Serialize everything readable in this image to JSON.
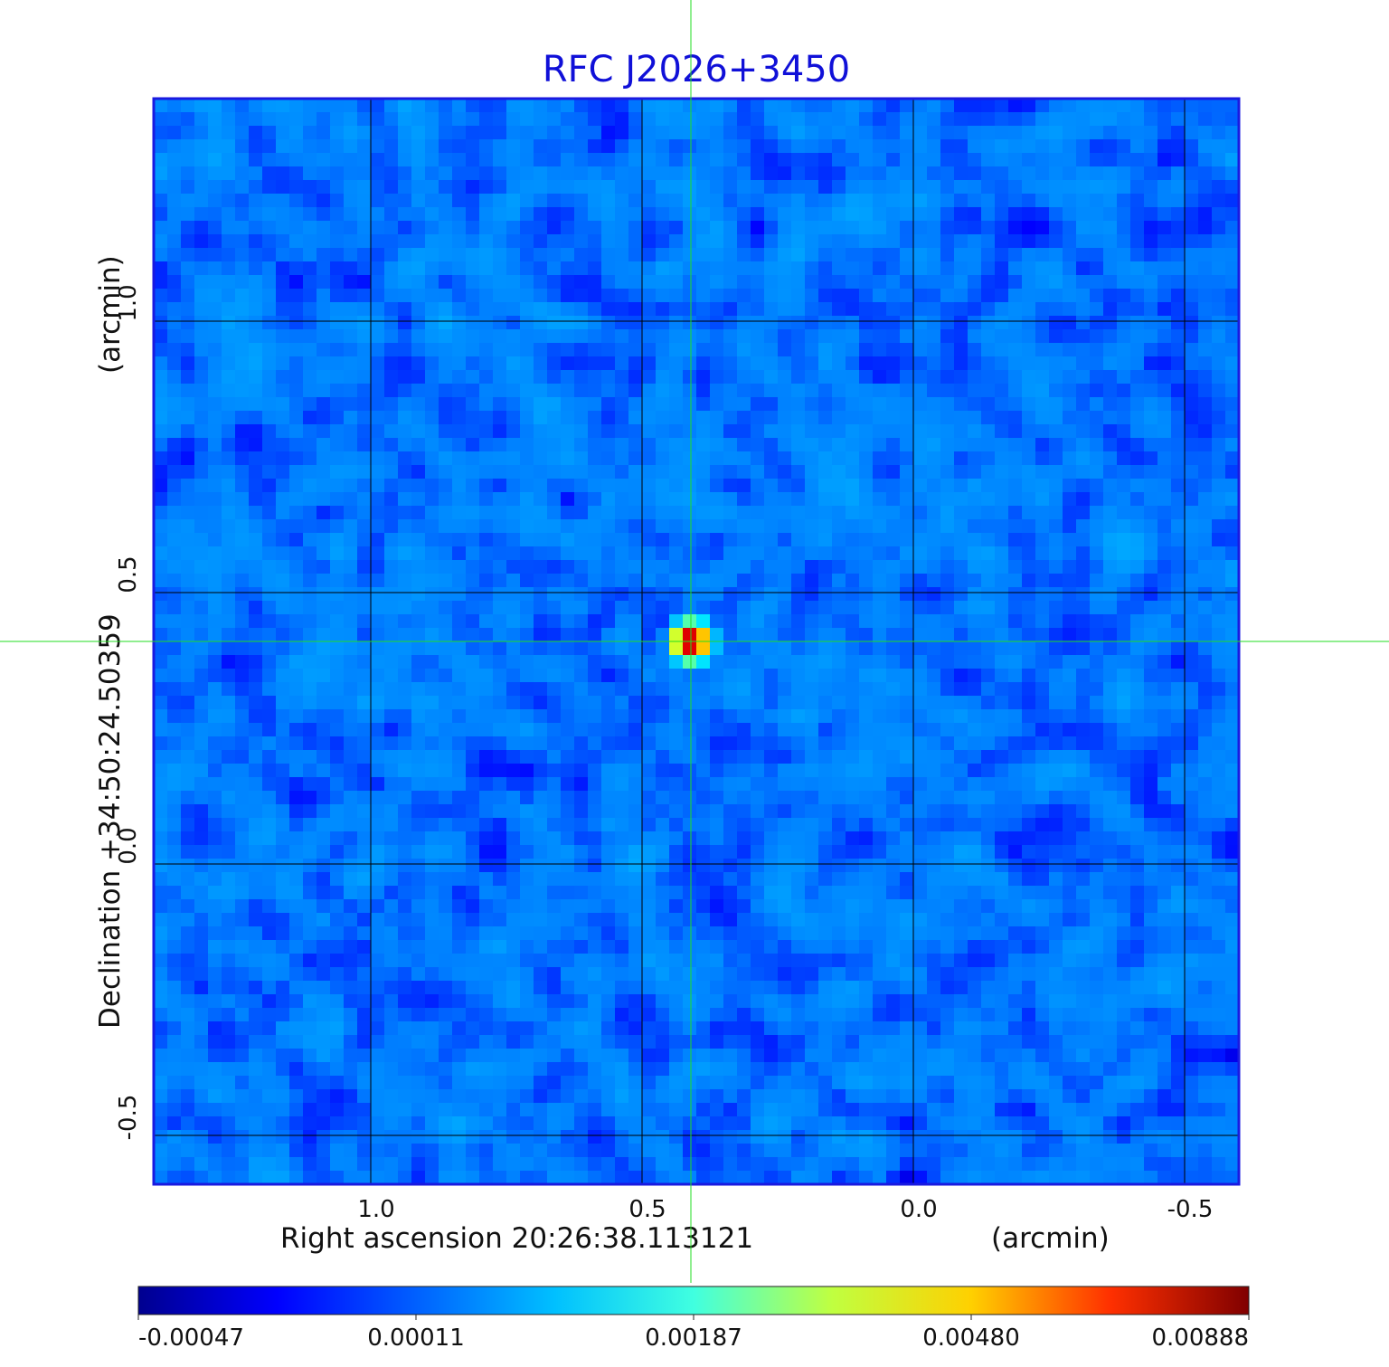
{
  "chart_data": {
    "type": "heatmap",
    "title": "RFC J2026+3450",
    "xlabel": "Right ascension  20:26:38.113121",
    "xunit": "(arcmin)",
    "ylabel": "Declination  +34:50:24.50359",
    "yunit": "(arcmin)",
    "xlim": [
      1.4,
      -0.6
    ],
    "ylim": [
      -0.59,
      1.41
    ],
    "x_ticks": [
      1.0,
      0.5,
      0.0,
      -0.5
    ],
    "y_ticks": [
      -0.5,
      0.0,
      0.5,
      1.0
    ],
    "x_tick_labels": [
      "1.0",
      "0.5",
      "0.0",
      "-0.5"
    ],
    "y_tick_labels": [
      "-0.5",
      "0.0",
      "0.5",
      "1.0"
    ],
    "grid": true,
    "crosshair": {
      "x": 0.41,
      "y": 0.41,
      "color": "#22dd22"
    },
    "source": {
      "x": 0.41,
      "y": 0.41,
      "peak": 0.00888
    },
    "noise_level": 0.0001,
    "colormap": "jet",
    "colorbar": {
      "ticks": [
        -0.00047,
        0.00011,
        0.00187,
        0.0048,
        0.00888
      ],
      "tick_labels": [
        "-0.00047",
        "0.00011",
        "0.00187",
        "0.00480",
        "0.00888"
      ],
      "colors": [
        "#00008f",
        "#0000ff",
        "#0080ff",
        "#00ffff",
        "#80ff80",
        "#ffff00",
        "#ff8000",
        "#ff0000",
        "#800000"
      ]
    }
  }
}
